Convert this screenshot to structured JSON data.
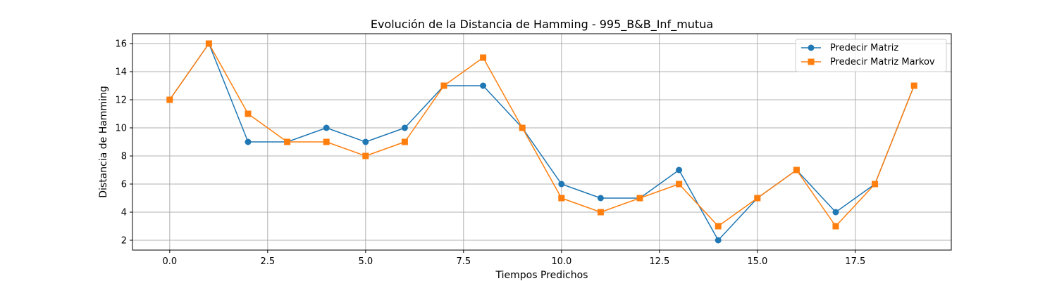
{
  "chart_data": {
    "type": "line",
    "title": "Evolución de la Distancia de Hamming - 995_B&B_Inf_mutua",
    "xlabel": "Tiempos Predichos",
    "ylabel": "Distancia de Hamming",
    "xlim": [
      -0.95,
      19.95
    ],
    "ylim": [
      1.3,
      16.7
    ],
    "xticks": [
      0.0,
      2.5,
      5.0,
      7.5,
      10.0,
      12.5,
      15.0,
      17.5
    ],
    "xtick_labels": [
      "0.0",
      "2.5",
      "5.0",
      "7.5",
      "10.0",
      "12.5",
      "15.0",
      "17.5"
    ],
    "yticks": [
      2,
      4,
      6,
      8,
      10,
      12,
      14,
      16
    ],
    "ytick_labels": [
      "2",
      "4",
      "6",
      "8",
      "10",
      "12",
      "14",
      "16"
    ],
    "grid": true,
    "legend_position": "top-right",
    "x": [
      0,
      1,
      2,
      3,
      4,
      5,
      6,
      7,
      8,
      9,
      10,
      11,
      12,
      13,
      14,
      15,
      16,
      17,
      18,
      19
    ],
    "series": [
      {
        "name": "Predecir Matriz",
        "color": "#1f77b4",
        "marker": "circle",
        "values": [
          12,
          16,
          9,
          9,
          10,
          9,
          10,
          13,
          13,
          10,
          6,
          5,
          5,
          7,
          2,
          5,
          7,
          4,
          6,
          13
        ]
      },
      {
        "name": "Predecir Matriz Markov",
        "color": "#ff7f0e",
        "marker": "square",
        "values": [
          12,
          16,
          11,
          9,
          9,
          8,
          9,
          13,
          15,
          10,
          5,
          4,
          5,
          6,
          3,
          5,
          7,
          3,
          6,
          13
        ]
      }
    ]
  }
}
